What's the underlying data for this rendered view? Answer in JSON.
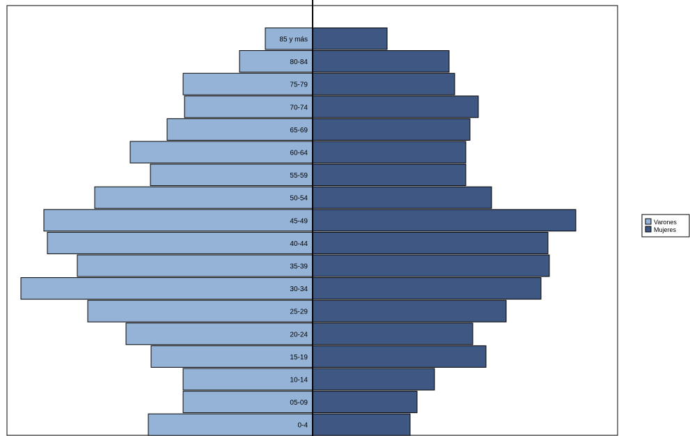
{
  "chart_data": {
    "type": "bar",
    "orientation": "horizontal",
    "subtype": "population-pyramid",
    "categories": [
      "85 y más",
      "80-84",
      "75-79",
      "70-74",
      "65-69",
      "60-64",
      "55-59",
      "50-54",
      "45-49",
      "40-44",
      "35-39",
      "30-34",
      "25-29",
      "20-24",
      "15-19",
      "10-14",
      "05-09",
      "0-4"
    ],
    "series": [
      {
        "name": "Varones",
        "color": "#95b3d7",
        "side": "left",
        "values": [
          68,
          105,
          186,
          184,
          209,
          262,
          233,
          313,
          386,
          381,
          338,
          419,
          323,
          268,
          232,
          186,
          186,
          236
        ]
      },
      {
        "name": "Mujeres",
        "color": "#3f5783",
        "side": "right",
        "values": [
          107,
          196,
          204,
          238,
          226,
          220,
          220,
          257,
          378,
          338,
          340,
          328,
          278,
          230,
          249,
          175,
          150,
          140
        ]
      }
    ],
    "title": "",
    "xlabel": "",
    "ylabel": "",
    "legend": "right",
    "grid": false
  }
}
